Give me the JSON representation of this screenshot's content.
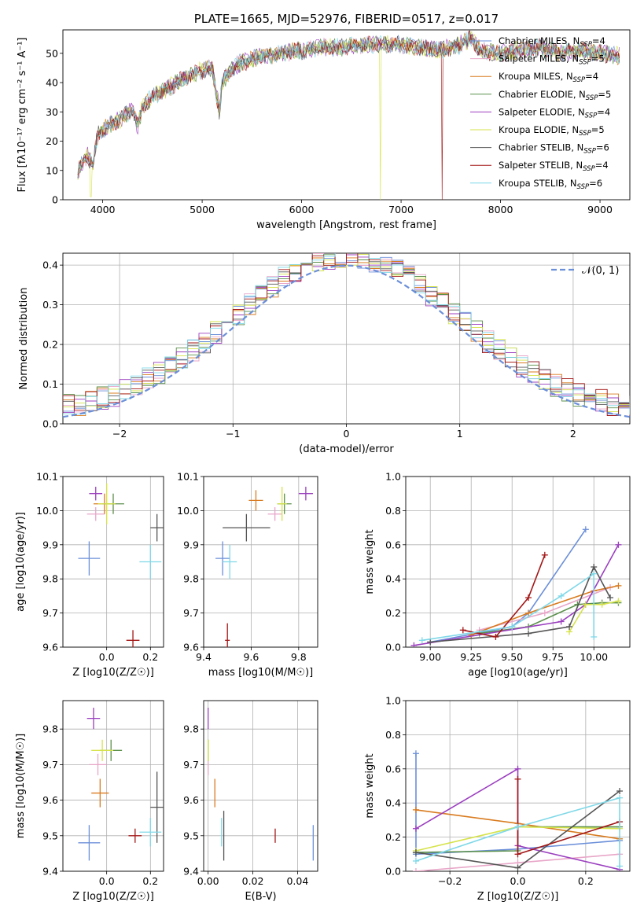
{
  "palette": [
    "#6b8fd9",
    "#e8a6c8",
    "#d97b1f",
    "#5a8f4a",
    "#9b3fbf",
    "#d6e34a",
    "#555555",
    "#a31717",
    "#7fd8e8"
  ],
  "chart_data": [
    {
      "id": "spectrum",
      "type": "line",
      "title": "PLATE=1665, MJD=52976, FIBERID=0517, z=0.017",
      "xlabel": "wavelength [Angstrom, rest frame]",
      "ylabel": "Flux [fλ10⁻¹⁷ erg cm⁻² s⁻¹ A⁻¹]",
      "xlim": [
        3600,
        9300
      ],
      "ylim": [
        0,
        58
      ],
      "xticks": [
        4000,
        5000,
        6000,
        7000,
        8000,
        9000
      ],
      "yticks": [
        0,
        10,
        20,
        30,
        40,
        50
      ],
      "grid": false,
      "legend_position": "top-right",
      "series": [
        {
          "name": "Chabrier MILES, N_SSP=4",
          "label_main": "Chabrier MILES, N",
          "label_sub": "SSP",
          "label_tail": "=4",
          "color": "#6b8fd9"
        },
        {
          "name": "Salpeter MILES, N_SSP=5",
          "label_main": "Salpeter MILES, N",
          "label_sub": "SSP",
          "label_tail": "=5",
          "color": "#e8a6c8"
        },
        {
          "name": "Kroupa MILES, N_SSP=4",
          "label_main": "Kroupa MILES, N",
          "label_sub": "SSP",
          "label_tail": "=4",
          "color": "#d97b1f"
        },
        {
          "name": "Chabrier ELODIE, N_SSP=5",
          "label_main": "Chabrier ELODIE, N",
          "label_sub": "SSP",
          "label_tail": "=5",
          "color": "#5a8f4a"
        },
        {
          "name": "Salpeter ELODIE, N_SSP=4",
          "label_main": "Salpeter ELODIE, N",
          "label_sub": "SSP",
          "label_tail": "=4",
          "color": "#9b3fbf"
        },
        {
          "name": "Kroupa ELODIE, N_SSP=5",
          "label_main": "Kroupa ELODIE, N",
          "label_sub": "SSP",
          "label_tail": "=5",
          "color": "#d6e34a"
        },
        {
          "name": "Chabrier STELIB, N_SSP=6",
          "label_main": "Chabrier STELIB, N",
          "label_sub": "SSP",
          "label_tail": "=6",
          "color": "#555555"
        },
        {
          "name": "Salpeter STELIB, N_SSP=4",
          "label_main": "Salpeter STELIB, N",
          "label_sub": "SSP",
          "label_tail": "=4",
          "color": "#a31717"
        },
        {
          "name": "Kroupa STELIB, N_SSP=6",
          "label_main": "Kroupa STELIB, N",
          "label_sub": "SSP",
          "label_tail": "=6",
          "color": "#7fd8e8"
        }
      ],
      "envelope": [
        [
          3750,
          10
        ],
        [
          3800,
          13
        ],
        [
          3850,
          15
        ],
        [
          3900,
          12
        ],
        [
          3950,
          22
        ],
        [
          4000,
          24
        ],
        [
          4100,
          26
        ],
        [
          4200,
          28
        ],
        [
          4300,
          31
        ],
        [
          4350,
          25
        ],
        [
          4400,
          32
        ],
        [
          4500,
          35
        ],
        [
          4600,
          37
        ],
        [
          4700,
          39
        ],
        [
          4800,
          41
        ],
        [
          4900,
          43
        ],
        [
          5000,
          44
        ],
        [
          5100,
          45
        ],
        [
          5175,
          30
        ],
        [
          5200,
          40
        ],
        [
          5300,
          45
        ],
        [
          5400,
          47
        ],
        [
          5500,
          48
        ],
        [
          5600,
          49
        ],
        [
          5800,
          50
        ],
        [
          6000,
          51
        ],
        [
          6200,
          52
        ],
        [
          6400,
          52
        ],
        [
          6600,
          53
        ],
        [
          6800,
          53
        ],
        [
          7000,
          53
        ],
        [
          7200,
          52
        ],
        [
          7400,
          51
        ],
        [
          7600,
          53
        ],
        [
          7700,
          55
        ],
        [
          7800,
          51
        ],
        [
          8000,
          50
        ],
        [
          8200,
          51
        ],
        [
          8400,
          52
        ],
        [
          8600,
          50
        ],
        [
          8800,
          51
        ],
        [
          9000,
          50
        ],
        [
          9200,
          49
        ]
      ],
      "glitches": [
        {
          "x": 3880,
          "y": 1,
          "series": 5
        },
        {
          "x": 6790,
          "y": 0,
          "series": 5
        },
        {
          "x": 7410,
          "y": 0,
          "series": 7
        }
      ]
    },
    {
      "id": "residuals",
      "type": "line",
      "xlabel": "(data-model)/error",
      "ylabel": "Normed distribution",
      "xlim": [
        -2.5,
        2.5
      ],
      "ylim": [
        0,
        0.43
      ],
      "xticks": [
        -2,
        -1,
        0,
        1,
        2
      ],
      "yticks": [
        0.0,
        0.1,
        0.2,
        0.3,
        0.4
      ],
      "grid": true,
      "legend_position": "top-right",
      "series": [
        {
          "name": "𝒩(0, 1)",
          "color": "#6b8fd9",
          "style": "dashed"
        }
      ],
      "histogram_bin_width": 0.1
    },
    {
      "id": "age-vs-Z",
      "type": "scatter",
      "xlabel": "Z [log10(Z/Z☉)]",
      "ylabel": "age  [log10(age/yr)]",
      "xlim": [
        -0.2,
        0.26
      ],
      "ylim": [
        9.6,
        10.1
      ],
      "xticks": [
        0.0,
        0.2
      ],
      "yticks": [
        9.6,
        9.7,
        9.8,
        9.9,
        10.0,
        10.1
      ],
      "grid": true,
      "points": [
        {
          "x": -0.08,
          "y": 9.86,
          "xerr": 0.05,
          "yerr": 0.05,
          "color": "#6b8fd9"
        },
        {
          "x": -0.05,
          "y": 9.99,
          "xerr": 0.04,
          "yerr": 0.02,
          "color": "#e8a6c8"
        },
        {
          "x": -0.01,
          "y": 10.02,
          "xerr": 0.05,
          "yerr": 0.03,
          "color": "#d97b1f"
        },
        {
          "x": 0.03,
          "y": 10.02,
          "xerr": 0.05,
          "yerr": 0.03,
          "color": "#5a8f4a"
        },
        {
          "x": -0.05,
          "y": 10.05,
          "xerr": 0.03,
          "yerr": 0.02,
          "color": "#9b3fbf"
        },
        {
          "x": 0.0,
          "y": 10.02,
          "xerr": 0.04,
          "yerr": 0.06,
          "color": "#d6e34a"
        },
        {
          "x": 0.23,
          "y": 9.95,
          "xerr": 0.03,
          "yerr": 0.04,
          "color": "#555555"
        },
        {
          "x": 0.12,
          "y": 9.62,
          "xerr": 0.03,
          "yerr": 0.03,
          "color": "#a31717"
        },
        {
          "x": 0.2,
          "y": 9.85,
          "xerr": 0.05,
          "yerr": 0.05,
          "color": "#7fd8e8"
        }
      ]
    },
    {
      "id": "age-vs-mass",
      "type": "scatter",
      "xlabel": "mass [log10(M/M☉)]",
      "ylabel": "",
      "xlim": [
        9.4,
        9.88
      ],
      "ylim": [
        9.6,
        10.1
      ],
      "xticks": [
        9.4,
        9.6,
        9.8
      ],
      "yticks": [
        9.6,
        9.7,
        9.8,
        9.9,
        10.0,
        10.1
      ],
      "grid": true,
      "points": [
        {
          "x": 9.48,
          "y": 9.86,
          "xerr": 0.03,
          "yerr": 0.05,
          "color": "#6b8fd9"
        },
        {
          "x": 9.7,
          "y": 9.99,
          "xerr": 0.03,
          "yerr": 0.02,
          "color": "#e8a6c8"
        },
        {
          "x": 9.62,
          "y": 10.03,
          "xerr": 0.03,
          "yerr": 0.03,
          "color": "#d97b1f"
        },
        {
          "x": 9.74,
          "y": 10.02,
          "xerr": 0.03,
          "yerr": 0.03,
          "color": "#5a8f4a"
        },
        {
          "x": 9.83,
          "y": 10.05,
          "xerr": 0.03,
          "yerr": 0.02,
          "color": "#9b3fbf"
        },
        {
          "x": 9.73,
          "y": 10.02,
          "xerr": 0.02,
          "yerr": 0.05,
          "color": "#d6e34a"
        },
        {
          "x": 9.58,
          "y": 9.95,
          "xerr": 0.1,
          "yerr": 0.04,
          "color": "#555555"
        },
        {
          "x": 9.5,
          "y": 9.62,
          "xerr": 0.01,
          "yerr": 0.05,
          "color": "#a31717"
        },
        {
          "x": 9.51,
          "y": 9.85,
          "xerr": 0.03,
          "yerr": 0.05,
          "color": "#7fd8e8"
        }
      ]
    },
    {
      "id": "weight-vs-age",
      "type": "line",
      "xlabel": "age  [log10(age/yr)]",
      "ylabel": "mass weight",
      "xlim": [
        8.85,
        10.22
      ],
      "ylim": [
        0,
        1.0
      ],
      "xticks": [
        9.0,
        9.25,
        9.5,
        9.75,
        10.0
      ],
      "yticks": [
        0.0,
        0.2,
        0.4,
        0.6,
        0.8,
        1.0
      ],
      "grid": true,
      "series": [
        {
          "color": "#6b8fd9",
          "points": [
            [
              9.0,
              0.03
            ],
            [
              9.5,
              0.12
            ],
            [
              9.6,
              0.2
            ],
            [
              9.95,
              0.69
            ]
          ]
        },
        {
          "color": "#e8a6c8",
          "points": [
            [
              9.3,
              0.1
            ],
            [
              9.7,
              0.2
            ],
            [
              10.1,
              0.35
            ]
          ]
        },
        {
          "color": "#d97b1f",
          "points": [
            [
              9.25,
              0.07
            ],
            [
              9.6,
              0.2
            ],
            [
              10.0,
              0.33
            ],
            [
              10.15,
              0.36
            ]
          ]
        },
        {
          "color": "#5a8f4a",
          "points": [
            [
              9.3,
              0.08
            ],
            [
              9.6,
              0.12
            ],
            [
              9.9,
              0.25
            ],
            [
              10.05,
              0.26
            ],
            [
              10.15,
              0.26
            ]
          ]
        },
        {
          "color": "#9b3fbf",
          "points": [
            [
              8.9,
              0.01
            ],
            [
              9.8,
              0.15
            ],
            [
              9.95,
              0.25
            ],
            [
              10.15,
              0.6
            ]
          ]
        },
        {
          "color": "#d6e34a",
          "points": [
            [
              9.85,
              0.09
            ],
            [
              9.95,
              0.25
            ],
            [
              10.05,
              0.25
            ],
            [
              10.15,
              0.27
            ]
          ]
        },
        {
          "color": "#555555",
          "points": [
            [
              9.0,
              0.03
            ],
            [
              9.6,
              0.08
            ],
            [
              9.85,
              0.12
            ],
            [
              10.0,
              0.47
            ],
            [
              10.1,
              0.29
            ]
          ]
        },
        {
          "color": "#a31717",
          "points": [
            [
              9.2,
              0.1
            ],
            [
              9.4,
              0.06
            ],
            [
              9.6,
              0.29
            ],
            [
              9.7,
              0.54
            ]
          ]
        },
        {
          "color": "#7fd8e8",
          "points": [
            [
              8.95,
              0.04
            ],
            [
              9.5,
              0.12
            ],
            [
              9.8,
              0.3
            ],
            [
              10.0,
              0.43
            ],
            [
              10.0,
              0.06
            ]
          ]
        }
      ]
    },
    {
      "id": "mass-vs-Z",
      "type": "scatter",
      "xlabel": "Z [log10(Z/Z☉)]",
      "ylabel": "mass [log10(M/M☉)]",
      "xlim": [
        -0.2,
        0.26
      ],
      "ylim": [
        9.4,
        9.88
      ],
      "xticks": [
        0.0,
        0.2
      ],
      "yticks": [
        9.4,
        9.5,
        9.6,
        9.7,
        9.8
      ],
      "grid": true,
      "points": [
        {
          "x": -0.08,
          "y": 9.48,
          "xerr": 0.05,
          "yerr": 0.05,
          "color": "#6b8fd9"
        },
        {
          "x": -0.04,
          "y": 9.7,
          "xerr": 0.04,
          "yerr": 0.03,
          "color": "#e8a6c8"
        },
        {
          "x": -0.03,
          "y": 9.62,
          "xerr": 0.04,
          "yerr": 0.04,
          "color": "#d97b1f"
        },
        {
          "x": 0.02,
          "y": 9.74,
          "xerr": 0.05,
          "yerr": 0.03,
          "color": "#5a8f4a"
        },
        {
          "x": -0.06,
          "y": 9.83,
          "xerr": 0.03,
          "yerr": 0.03,
          "color": "#9b3fbf"
        },
        {
          "x": -0.02,
          "y": 9.74,
          "xerr": 0.05,
          "yerr": 0.03,
          "color": "#d6e34a"
        },
        {
          "x": 0.23,
          "y": 9.58,
          "xerr": 0.03,
          "yerr": 0.1,
          "color": "#555555"
        },
        {
          "x": 0.13,
          "y": 9.5,
          "xerr": 0.03,
          "yerr": 0.02,
          "color": "#a31717"
        },
        {
          "x": 0.2,
          "y": 9.51,
          "xerr": 0.05,
          "yerr": 0.04,
          "color": "#7fd8e8"
        }
      ]
    },
    {
      "id": "mass-vs-ebv",
      "type": "scatter",
      "xlabel": "E(B-V)",
      "ylabel": "",
      "xlim": [
        -0.002,
        0.049
      ],
      "ylim": [
        9.4,
        9.88
      ],
      "xticks": [
        0.0,
        0.02,
        0.04
      ],
      "yticks": [
        9.4,
        9.5,
        9.6,
        9.7,
        9.8
      ],
      "grid": true,
      "points": [
        {
          "x": 0.047,
          "y": 9.48,
          "xerr": 0,
          "yerr": 0.05,
          "color": "#6b8fd9"
        },
        {
          "x": 0.0,
          "y": 9.7,
          "xerr": 0,
          "yerr": 0.03,
          "color": "#e8a6c8"
        },
        {
          "x": 0.003,
          "y": 9.62,
          "xerr": 0,
          "yerr": 0.04,
          "color": "#d97b1f"
        },
        {
          "x": 0.0,
          "y": 9.74,
          "xerr": 0,
          "yerr": 0.03,
          "color": "#5a8f4a"
        },
        {
          "x": 0.0,
          "y": 9.83,
          "xerr": 0,
          "yerr": 0.03,
          "color": "#9b3fbf"
        },
        {
          "x": 0.0,
          "y": 9.74,
          "xerr": 0,
          "yerr": 0.03,
          "color": "#d6e34a"
        },
        {
          "x": 0.007,
          "y": 9.5,
          "xerr": 0,
          "yerr": 0.07,
          "color": "#555555"
        },
        {
          "x": 0.03,
          "y": 9.5,
          "xerr": 0,
          "yerr": 0.02,
          "color": "#a31717"
        },
        {
          "x": 0.006,
          "y": 9.51,
          "xerr": 0,
          "yerr": 0.04,
          "color": "#7fd8e8"
        }
      ]
    },
    {
      "id": "weight-vs-Z",
      "type": "line",
      "xlabel": "Z [log10(Z/Z☉)]",
      "ylabel": "mass weight",
      "xlim": [
        -0.33,
        0.33
      ],
      "ylim": [
        0,
        1.0
      ],
      "xticks": [
        -0.2,
        0.0,
        0.2
      ],
      "yticks": [
        0.0,
        0.2,
        0.4,
        0.6,
        0.8,
        1.0
      ],
      "grid": true,
      "series": [
        {
          "color": "#6b8fd9",
          "points": [
            [
              -0.3,
              0.69
            ],
            [
              -0.3,
              0.1
            ],
            [
              0.0,
              0.13
            ],
            [
              0.3,
              0.18
            ]
          ]
        },
        {
          "color": "#e8a6c8",
          "points": [
            [
              -0.3,
              0.0
            ],
            [
              0.0,
              0.05
            ],
            [
              0.3,
              0.1
            ]
          ]
        },
        {
          "color": "#d97b1f",
          "points": [
            [
              -0.3,
              0.36
            ],
            [
              0.0,
              0.28
            ],
            [
              0.3,
              0.19
            ]
          ]
        },
        {
          "color": "#5a8f4a",
          "points": [
            [
              -0.3,
              0.11
            ],
            [
              0.0,
              0.12
            ],
            [
              0.0,
              0.26
            ],
            [
              0.3,
              0.26
            ]
          ]
        },
        {
          "color": "#9b3fbf",
          "points": [
            [
              -0.3,
              0.25
            ],
            [
              0.0,
              0.6
            ],
            [
              0.0,
              0.15
            ],
            [
              0.3,
              0.01
            ]
          ]
        },
        {
          "color": "#d6e34a",
          "points": [
            [
              -0.3,
              0.12
            ],
            [
              0.0,
              0.26
            ],
            [
              0.3,
              0.25
            ]
          ]
        },
        {
          "color": "#555555",
          "points": [
            [
              -0.3,
              0.11
            ],
            [
              0.0,
              0.02
            ],
            [
              0.3,
              0.47
            ]
          ]
        },
        {
          "color": "#a31717",
          "points": [
            [
              0.0,
              0.54
            ],
            [
              0.0,
              0.1
            ],
            [
              0.3,
              0.29
            ]
          ]
        },
        {
          "color": "#7fd8e8",
          "points": [
            [
              -0.3,
              0.06
            ],
            [
              0.0,
              0.26
            ],
            [
              0.3,
              0.43
            ],
            [
              0.3,
              0.03
            ]
          ]
        }
      ]
    }
  ]
}
